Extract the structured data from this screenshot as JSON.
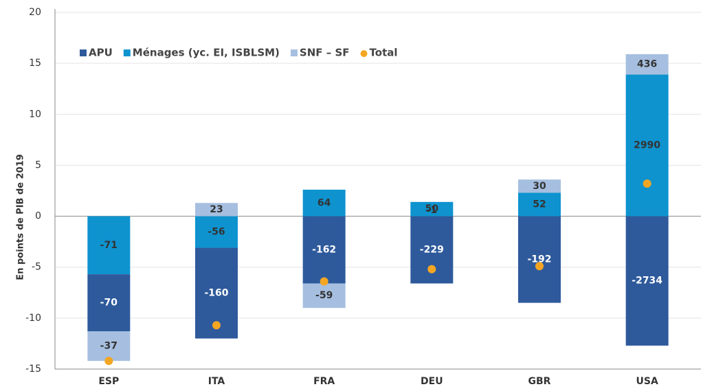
{
  "chart_data": {
    "type": "bar",
    "y_label": "En points de PIB de 2019",
    "categories": [
      "ESP",
      "ITA",
      "FRA",
      "DEU",
      "GBR",
      "USA"
    ],
    "ylim": [
      -15,
      20
    ],
    "yticks": [
      -15,
      -10,
      -5,
      0,
      5,
      10,
      15,
      20
    ],
    "grid": true,
    "legend": "top-left",
    "series": [
      {
        "name": "APU",
        "color": "#2e5a9c",
        "values": [
          -5.6,
          -8.9,
          -6.6,
          -6.6,
          -8.5,
          -12.7
        ],
        "point_labels": [
          "-70",
          "-160",
          "-162",
          "-229",
          "-192",
          "-2734"
        ]
      },
      {
        "name": "Ménages (yc. EI, ISBLSM)",
        "color": "#0e93cf",
        "values": [
          -5.7,
          -3.1,
          2.6,
          1.4,
          2.3,
          13.9
        ],
        "point_labels": [
          "-71",
          "-56",
          "64",
          "50",
          "52",
          "2990"
        ]
      },
      {
        "name": "SNF – SF",
        "color": "#a6bfe0",
        "values": [
          -2.9,
          1.3,
          -2.4,
          0,
          1.3,
          2.0
        ],
        "point_labels": [
          "-37",
          "23",
          "-59",
          "-1",
          "30",
          "436"
        ]
      },
      {
        "name": "Total",
        "color": "#f4a623",
        "type": "scatter",
        "values": [
          -14.2,
          -10.7,
          -6.4,
          -5.2,
          -4.9,
          3.2
        ]
      }
    ]
  }
}
